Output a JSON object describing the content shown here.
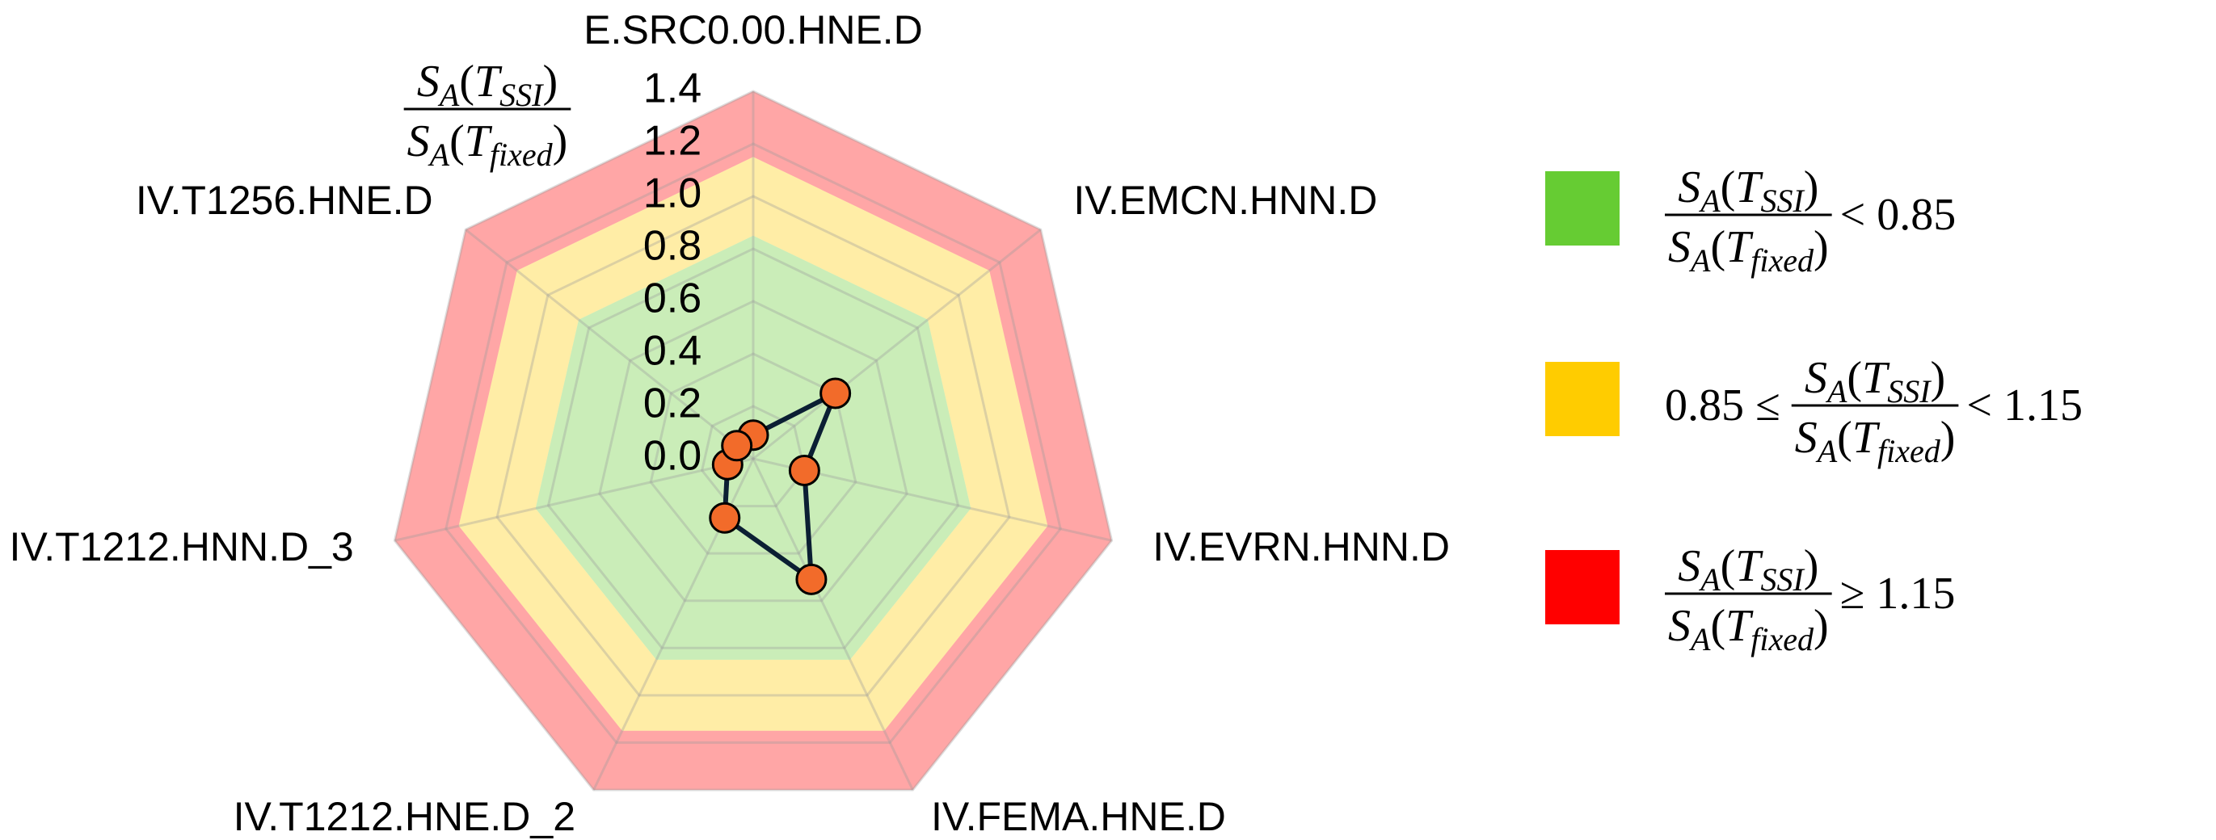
{
  "chart_data": {
    "type": "radar",
    "categories": [
      "E.SRC0.00.HNE.D",
      "IV.EMCN.HNN.D",
      "IV.EVRN.HNN.D",
      "IV.FEMA.HNE.D",
      "IV.T1212.HNE.D_2",
      "IV.T1212.HNN.D_3",
      "IV.T1256.HNE.D"
    ],
    "series": [
      {
        "values": [
          0.09,
          0.4,
          0.2,
          0.51,
          0.25,
          0.1,
          0.08
        ],
        "color": "#f26b2a",
        "line_color": "#0b1f33"
      }
    ],
    "ylim": [
      0,
      1.4
    ],
    "yticks": [
      {
        "value": 0,
        "label": "0.0"
      },
      0.2,
      0.4,
      0.6,
      0.8,
      {
        "value": 1,
        "label": "1.0"
      },
      1.2,
      1.4
    ],
    "ratio": {
      "numerator": [
        "S",
        "A",
        "(",
        "T",
        "SSI",
        ")"
      ],
      "denominator": [
        "S",
        "A",
        "(",
        "T",
        "fixed",
        ")"
      ]
    },
    "zones": [
      {
        "range": [
          0,
          0.85
        ],
        "color": "#66cc33",
        "suffix": "< 0.85"
      },
      {
        "range": [
          0.85,
          1.15
        ],
        "color": "#ffcc00",
        "prefix": "0.85 ≤",
        "suffix": "< 1.15"
      },
      {
        "range": [
          1.15,
          1.4
        ],
        "color": "#ff0000",
        "suffix": "≥ 1.15"
      }
    ],
    "grid": true
  }
}
